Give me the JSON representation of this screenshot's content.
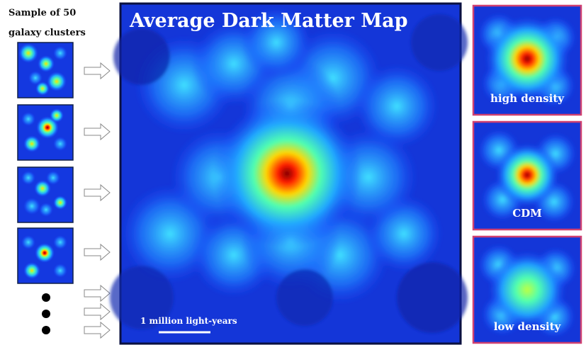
{
  "sidebar": {
    "title_lines": [
      "Sample of 50",
      "galaxy clusters"
    ]
  },
  "main": {
    "title": "Average Dark Matter Map",
    "scale_label": "1 million light-years"
  },
  "panels": [
    {
      "label": "high density"
    },
    {
      "label": "CDM"
    },
    {
      "label": "low density"
    }
  ]
}
